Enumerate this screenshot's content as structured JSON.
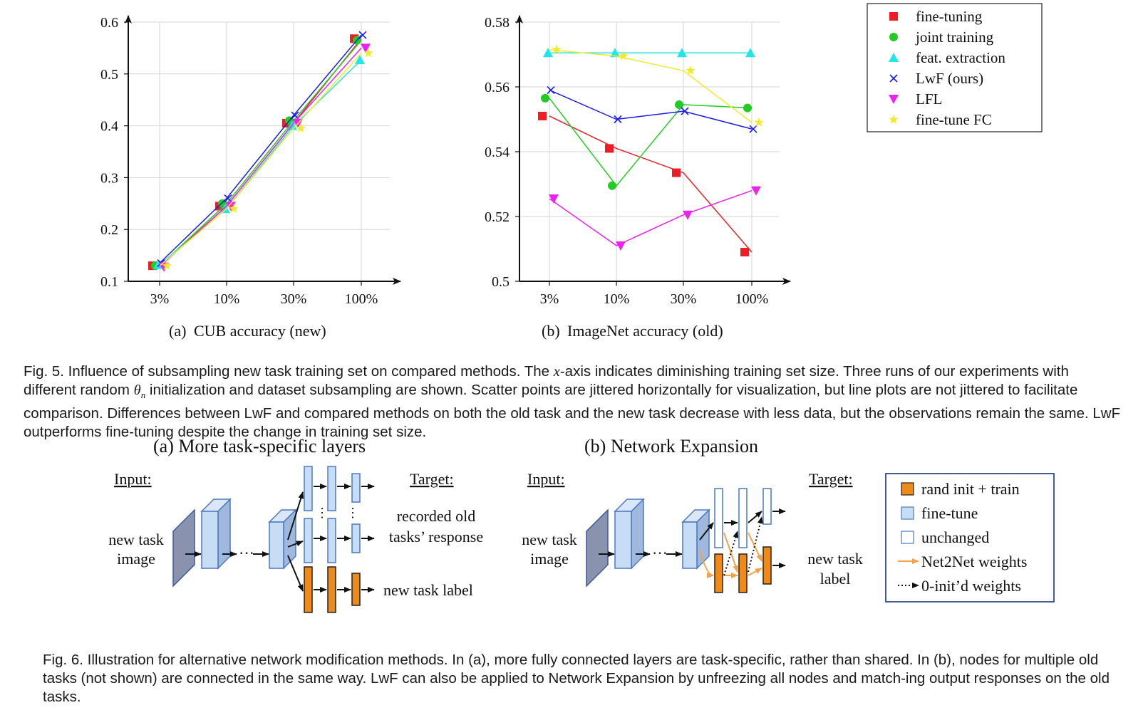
{
  "figure5": {
    "legend": [
      {
        "label": "fine-tuning",
        "marker": "square",
        "color": "#ee1c24"
      },
      {
        "label": "joint training",
        "marker": "circle",
        "color": "#22cc22"
      },
      {
        "label": "feat. extraction",
        "marker": "triangle-up",
        "color": "#22e5e8"
      },
      {
        "label": "LwF (ours)",
        "marker": "x",
        "color": "#1a1aee"
      },
      {
        "label": "LFL",
        "marker": "triangle-down",
        "color": "#ee22ee"
      },
      {
        "label": "fine-tune FC",
        "marker": "star",
        "color": "#f2ea2a"
      }
    ],
    "subcaption_a_tag": "(a)",
    "subcaption_a_text": "CUB accuracy (new)",
    "subcaption_b_tag": "(b)",
    "subcaption_b_text": "ImageNet accuracy (old)",
    "caption_label": "Fig. 5.",
    "caption_text_1": "Influence of subsampling new task training set on compared methods. The ",
    "caption_math_x": "x",
    "caption_text_2": "-axis indicates diminishing training set size. Three runs of our experiments with different random ",
    "caption_math_theta": "θ",
    "caption_math_theta_sub": "n",
    "caption_text_3": " initialization and dataset subsampling are shown. Scatter points are jittered horizontally for visualization, but line plots are not jittered to facilitate comparison. Differences between LwF and compared methods on both the old task and the new task decrease with less data, but the observations remain the same. LwF outperforms fine-tuning despite the change in training set size."
  },
  "chart_data": [
    {
      "type": "line",
      "subplot": "(a) CUB accuracy (new)",
      "categories": [
        "3%",
        "10%",
        "30%",
        "100%"
      ],
      "ylim": [
        0.1,
        0.6
      ],
      "yticks": [
        "0.1",
        "0.2",
        "0.3",
        "0.4",
        "0.5",
        "0.6"
      ],
      "series": [
        {
          "name": "fine-tuning",
          "values": [
            0.13,
            0.245,
            0.405,
            0.568
          ]
        },
        {
          "name": "joint training",
          "values": [
            0.13,
            0.25,
            0.41,
            0.565
          ]
        },
        {
          "name": "feat. extraction",
          "values": [
            0.132,
            0.24,
            0.4,
            0.527
          ]
        },
        {
          "name": "LwF (ours)",
          "values": [
            0.135,
            0.26,
            0.42,
            0.575
          ]
        },
        {
          "name": "LFL",
          "values": [
            0.128,
            0.245,
            0.405,
            0.55
          ]
        },
        {
          "name": "fine-tune FC",
          "values": [
            0.13,
            0.24,
            0.395,
            0.54
          ]
        }
      ]
    },
    {
      "type": "line",
      "subplot": "(b) ImageNet accuracy (old)",
      "categories": [
        "3%",
        "10%",
        "30%",
        "100%"
      ],
      "ylim": [
        0.5,
        0.58
      ],
      "yticks": [
        "0.5",
        "0.52",
        "0.54",
        "0.56",
        "0.58"
      ],
      "series": [
        {
          "name": "fine-tuning",
          "values": [
            0.551,
            0.541,
            0.5335,
            0.509
          ]
        },
        {
          "name": "joint training",
          "values": [
            0.5565,
            0.5295,
            0.5545,
            0.5535
          ]
        },
        {
          "name": "feat. extraction",
          "values": [
            0.5705,
            0.5705,
            0.5705,
            0.5705
          ]
        },
        {
          "name": "LwF (ours)",
          "values": [
            0.559,
            0.55,
            0.5525,
            0.547
          ]
        },
        {
          "name": "LFL",
          "values": [
            0.5255,
            0.511,
            0.5205,
            0.528
          ]
        },
        {
          "name": "fine-tune FC",
          "values": [
            0.5715,
            0.5695,
            0.565,
            0.549
          ]
        }
      ]
    }
  ],
  "figure6": {
    "title_a": "(a) More task-specific layers",
    "title_b": "(b) Network Expansion",
    "input_label": "Input:",
    "target_label": "Target:",
    "new_task_line1": "new task",
    "new_task_line2": "image",
    "recorded_line1": "recorded old",
    "recorded_line2": "tasks’ response",
    "new_task_label": "new task label",
    "new_task_label_b1": "new task",
    "new_task_label_b2": "label",
    "legend": [
      {
        "label": "rand init + train",
        "swatch": "orange-box"
      },
      {
        "label": "fine-tune",
        "swatch": "blue-box"
      },
      {
        "label": "unchanged",
        "swatch": "white-box"
      },
      {
        "label": "Net2Net weights",
        "swatch": "orange-arrow"
      },
      {
        "label": "0-init’d weights",
        "swatch": "dotted-arrow"
      }
    ],
    "caption_label": "Fig. 6.",
    "caption_text": "Illustration for alternative network modification methods. In (a), more fully connected layers are task-specific, rather than shared. In (b), nodes for multiple old tasks (not shown) are connected in the same way. LwF can also be applied to Network Expansion by unfreezing all nodes and match-ing output responses on the old tasks."
  },
  "colors": {
    "fine_tuning": "#ee1c24",
    "joint_training": "#22cc22",
    "feat_extraction": "#22e5e8",
    "lwf": "#1a1aee",
    "lfl": "#ee22ee",
    "fine_tune_fc": "#f2ea2a",
    "orange": "#ee8a1a",
    "light_blue": "#c7dcf5",
    "dark_gray_blue": "#8a93ad",
    "legend_border_blue": "#2f4a8a"
  }
}
